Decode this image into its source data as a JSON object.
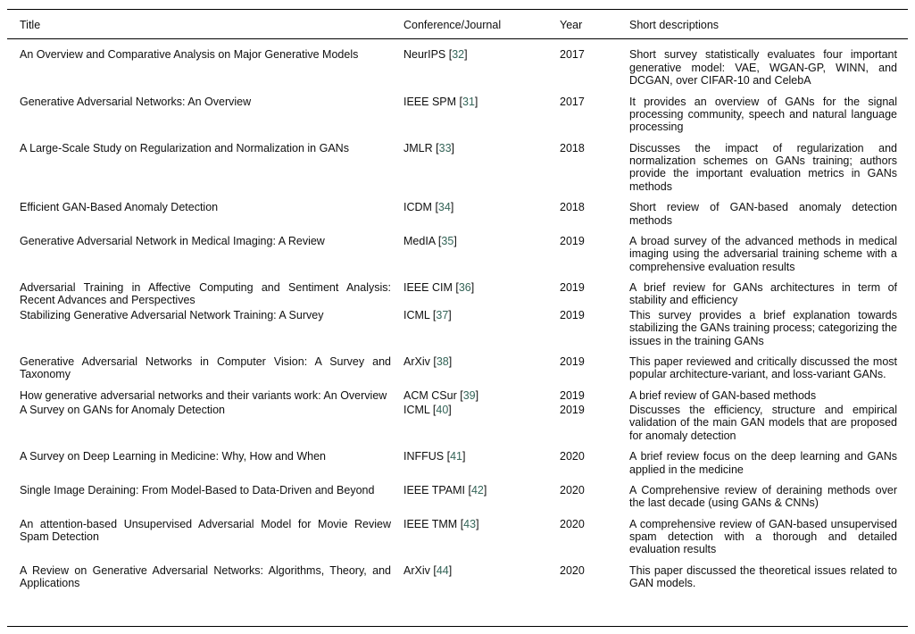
{
  "colors": {
    "background": "#ffffff",
    "text": "#0f0f0f",
    "rule": "#000000",
    "citation": "#336457"
  },
  "table": {
    "columns": [
      "Title",
      "Conference/Journal",
      "Year",
      "Short descriptions"
    ],
    "rows": [
      {
        "title": "An Overview and Comparative Analysis on Major Generative Models",
        "venue": "NeurIPS",
        "cite": "32",
        "year": "2017",
        "description": "Short survey statistically evaluates four important generative model: VAE, WGAN-GP, WINN, and DCGAN, over CIFAR-10 and CelebA"
      },
      {
        "title": "Generative Adversarial Networks: An Overview",
        "venue": "IEEE SPM",
        "cite": "31",
        "year": "2017",
        "description": "It provides an overview of GANs for the signal processing community, speech and natural language processing"
      },
      {
        "title": "A Large-Scale Study on Regularization and Normalization in GANs",
        "venue": "JMLR",
        "cite": "33",
        "year": "2018",
        "description": "Discusses the impact of regularization and normalization schemes on GANs training; authors provide the important evaluation metrics in GANs methods"
      },
      {
        "title": "Efficient GAN-Based Anomaly Detection",
        "venue": "ICDM",
        "cite": "34",
        "year": "2018",
        "description": "Short review of GAN-based anomaly detection methods"
      },
      {
        "title": "Generative Adversarial Network in Medical Imaging: A Review",
        "venue": "MedIA",
        "cite": "35",
        "year": "2019",
        "description": "A broad survey of the advanced methods in medical imaging using the adversarial training scheme with a comprehensive evaluation results"
      },
      {
        "title": "Adversarial Training in Affective Computing and Sentiment Analysis: Recent Advances and Perspectives",
        "venue": "IEEE CIM",
        "cite": "36",
        "year": "2019",
        "description": "A brief review for GANs architectures in term of stability and efficiency"
      },
      {
        "title": "Stabilizing Generative Adversarial Network Training: A Survey",
        "venue": "ICML",
        "cite": "37",
        "year": "2019",
        "description": "This survey provides a brief explanation towards stabilizing the GANs training process; categorizing the issues in the training GANs"
      },
      {
        "title": "Generative Adversarial Networks in Computer Vision: A Survey and Taxonomy",
        "venue": "ArXiv",
        "cite": "38",
        "year": "2019",
        "description": "This paper reviewed and critically discussed the most popular architecture-variant, and loss-variant GANs."
      },
      {
        "title": "How generative adversarial networks and their variants work: An Overview",
        "venue": "ACM CSur",
        "cite": "39",
        "year": "2019",
        "description": "A brief review of GAN-based methods"
      },
      {
        "title": "A Survey on GANs for Anomaly Detection",
        "venue": "ICML",
        "cite": "40",
        "year": "2019",
        "description": "Discusses the efficiency, structure and empirical validation of the main GAN models that are proposed for anomaly detection"
      },
      {
        "title": "A Survey on Deep Learning in Medicine: Why, How and When",
        "venue": "INFFUS",
        "cite": "41",
        "year": "2020",
        "description": "A brief review focus on the deep learning and GANs applied in the medicine"
      },
      {
        "title": "Single Image Deraining: From Model-Based to Data-Driven and Beyond",
        "venue": "IEEE TPAMI",
        "cite": "42",
        "year": "2020",
        "description": "A Comprehensive review of deraining methods over the last decade (using GANs & CNNs)"
      },
      {
        "title": "An attention-based Unsupervised Adversarial Model for Movie Review Spam Detection",
        "venue": "IEEE TMM",
        "cite": "43",
        "year": "2020",
        "description": "A comprehensive review of GAN-based unsupervised spam detection with a thorough and detailed evaluation results"
      },
      {
        "title": "A Review on Generative Adversarial Networks: Algorithms, Theory, and Applications",
        "venue": "ArXiv",
        "cite": "44",
        "year": "2020",
        "description": "This paper discussed the theoretical issues related to GAN models."
      }
    ]
  }
}
